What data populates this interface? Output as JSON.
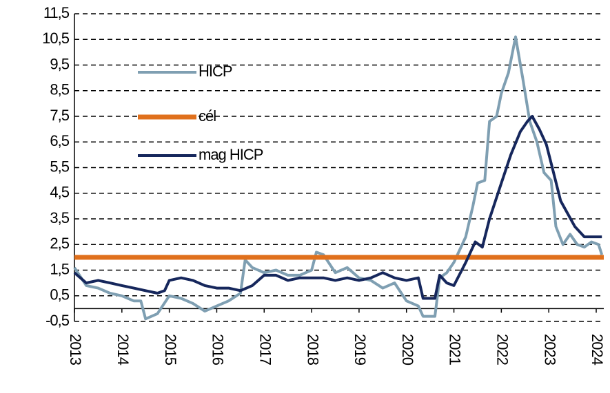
{
  "chart_data": {
    "type": "line",
    "xlim": [
      2013,
      2024.16
    ],
    "xticks": [
      2013,
      2014,
      2015,
      2016,
      2017,
      2018,
      2019,
      2020,
      2021,
      2022,
      2023,
      2024
    ],
    "ylim": [
      -0.5,
      11.5
    ],
    "yticks": [
      {
        "value": -0.5,
        "label": "-0,5"
      },
      {
        "value": 0.5,
        "label": "0,5"
      },
      {
        "value": 1.5,
        "label": "1,5"
      },
      {
        "value": 2.5,
        "label": "2,5"
      },
      {
        "value": 3.5,
        "label": "3,5"
      },
      {
        "value": 4.5,
        "label": "4,5"
      },
      {
        "value": 5.5,
        "label": "5,5"
      },
      {
        "value": 6.5,
        "label": "6,5"
      },
      {
        "value": 7.5,
        "label": "7,5"
      },
      {
        "value": 8.5,
        "label": "8,5"
      },
      {
        "value": 9.5,
        "label": "9,5"
      },
      {
        "value": 10.5,
        "label": "10,5"
      },
      {
        "value": 11.5,
        "label": "11,5"
      }
    ],
    "grid": true,
    "series": [
      {
        "name": "HICP",
        "color": "#7f9fb2",
        "x": [
          2013.0,
          2013.25,
          2013.5,
          2013.75,
          2014.0,
          2014.25,
          2014.4,
          2014.5,
          2014.75,
          2015.0,
          2015.25,
          2015.5,
          2015.75,
          2016.0,
          2016.25,
          2016.5,
          2016.6,
          2016.75,
          2017.0,
          2017.25,
          2017.5,
          2017.75,
          2018.0,
          2018.1,
          2018.25,
          2018.5,
          2018.75,
          2019.0,
          2019.25,
          2019.5,
          2019.75,
          2020.0,
          2020.25,
          2020.35,
          2020.6,
          2020.7,
          2020.85,
          2021.0,
          2021.25,
          2021.4,
          2021.5,
          2021.65,
          2021.75,
          2021.9,
          2022.0,
          2022.15,
          2022.3,
          2022.45,
          2022.6,
          2022.75,
          2022.9,
          2023.05,
          2023.15,
          2023.3,
          2023.45,
          2023.6,
          2023.75,
          2023.9,
          2024.05,
          2024.12
        ],
        "values": [
          1.6,
          0.9,
          0.8,
          0.6,
          0.5,
          0.3,
          0.3,
          -0.4,
          -0.2,
          0.5,
          0.4,
          0.2,
          -0.1,
          0.1,
          0.3,
          0.6,
          1.9,
          1.6,
          1.4,
          1.5,
          1.3,
          1.3,
          1.5,
          2.2,
          2.1,
          1.4,
          1.6,
          1.2,
          1.1,
          0.8,
          1.0,
          0.3,
          0.1,
          -0.3,
          -0.3,
          1.2,
          1.4,
          1.8,
          2.8,
          4.0,
          4.9,
          5.0,
          7.3,
          7.5,
          8.4,
          9.2,
          10.6,
          9.0,
          7.3,
          6.5,
          5.3,
          5.0,
          3.2,
          2.5,
          2.9,
          2.5,
          2.4,
          2.6,
          2.5,
          2.1
        ]
      },
      {
        "name": "cél",
        "color": "#e0701c",
        "width": 7,
        "x": [
          2013.0,
          2024.16
        ],
        "values": [
          2,
          2
        ]
      },
      {
        "name": "mag HICP",
        "color": "#16275c",
        "x": [
          2013.0,
          2013.25,
          2013.5,
          2013.75,
          2014.0,
          2014.25,
          2014.5,
          2014.75,
          2014.9,
          2015.0,
          2015.25,
          2015.5,
          2015.75,
          2016.0,
          2016.25,
          2016.5,
          2016.75,
          2017.0,
          2017.25,
          2017.5,
          2017.75,
          2018.0,
          2018.25,
          2018.5,
          2018.75,
          2019.0,
          2019.25,
          2019.5,
          2019.75,
          2020.0,
          2020.25,
          2020.35,
          2020.6,
          2020.7,
          2020.85,
          2021.0,
          2021.25,
          2021.45,
          2021.6,
          2021.75,
          2022.0,
          2022.2,
          2022.4,
          2022.55,
          2022.65,
          2022.8,
          2022.95,
          2023.1,
          2023.25,
          2023.4,
          2023.55,
          2023.75,
          2023.9,
          2024.12
        ],
        "values": [
          1.4,
          1.0,
          1.1,
          1.0,
          0.9,
          0.8,
          0.7,
          0.6,
          0.7,
          1.1,
          1.2,
          1.1,
          0.9,
          0.8,
          0.8,
          0.7,
          0.9,
          1.3,
          1.3,
          1.1,
          1.2,
          1.2,
          1.2,
          1.1,
          1.2,
          1.1,
          1.2,
          1.4,
          1.2,
          1.1,
          1.2,
          0.4,
          0.4,
          1.3,
          1.0,
          0.9,
          1.8,
          2.6,
          2.4,
          3.5,
          4.9,
          6.0,
          6.9,
          7.3,
          7.5,
          7.0,
          6.4,
          5.3,
          4.2,
          3.7,
          3.2,
          2.8,
          2.8,
          2.8
        ]
      }
    ]
  }
}
